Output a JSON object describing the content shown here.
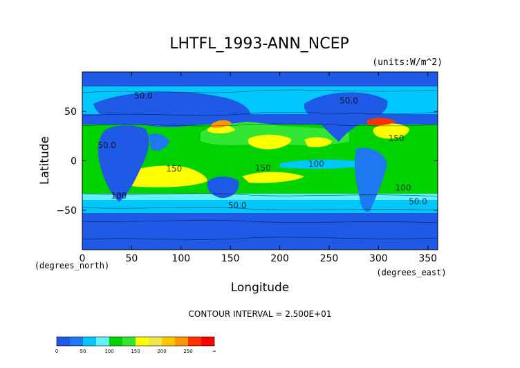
{
  "chart_data": {
    "type": "heatmap",
    "title": "LHTFL_1993-ANN_NCEP",
    "units_label": "(units:W/m^2)",
    "xlabel": "Longitude",
    "ylabel": "Latitude",
    "x_unit_label": "(degrees_east)",
    "y_unit_label": "(degrees_north)",
    "xlim": [
      0,
      360
    ],
    "ylim": [
      -90,
      90
    ],
    "x_ticks": [
      "0",
      "50",
      "100",
      "150",
      "200",
      "250",
      "300",
      "350"
    ],
    "x_tick_values": [
      0,
      50,
      100,
      150,
      200,
      250,
      300,
      350
    ],
    "y_ticks": [
      "50",
      "0",
      "−50"
    ],
    "y_tick_values": [
      50,
      0,
      -50
    ],
    "contour_interval_text": "CONTOUR INTERVAL = 2.500E+01",
    "contour_labels": [
      {
        "text": "50.0",
        "x": 62,
        "y": 63
      },
      {
        "text": "50.0",
        "x": 270,
        "y": 58
      },
      {
        "text": "50.0",
        "x": 25,
        "y": 13
      },
      {
        "text": "150",
        "x": 318,
        "y": 20
      },
      {
        "text": "150",
        "x": 93,
        "y": -11
      },
      {
        "text": "150",
        "x": 183,
        "y": -10
      },
      {
        "text": "100",
        "x": 237,
        "y": -6
      },
      {
        "text": "100",
        "x": 325,
        "y": -30
      },
      {
        "text": "100",
        "x": 37,
        "y": -38
      },
      {
        "text": "50.0",
        "x": 157,
        "y": -48
      },
      {
        "text": "50.0",
        "x": 340,
        "y": -44
      }
    ],
    "colorbar": {
      "bin_edges": [
        0,
        25,
        50,
        75,
        100,
        125,
        150,
        175,
        200,
        225,
        250,
        275,
        300
      ],
      "colors": [
        "#1e5ae6",
        "#1e78f0",
        "#00c8ff",
        "#64f0ff",
        "#00d200",
        "#32e632",
        "#ffff00",
        "#f0e650",
        "#ffc800",
        "#ff9600",
        "#ff3200",
        "#ff0000"
      ],
      "labels": [
        "0",
        "50",
        "100",
        "150",
        "200",
        "250",
        "∞"
      ]
    }
  }
}
